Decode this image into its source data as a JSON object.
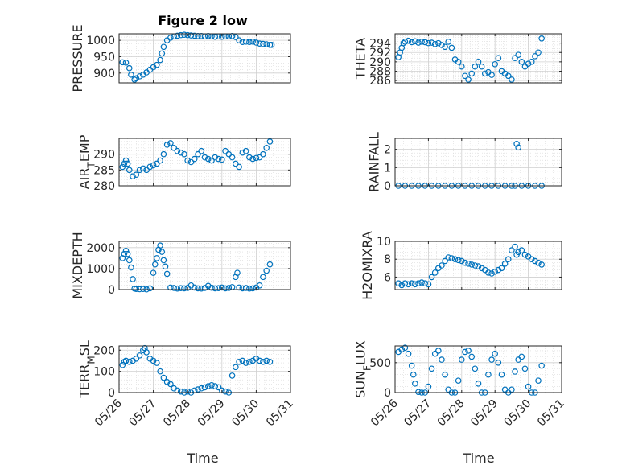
{
  "figure": {
    "title": "Figure 2 low",
    "marker_color": "#0072BD",
    "x_ticks": [
      "05/26",
      "05/27",
      "05/28",
      "05/29",
      "05/30",
      "05/31"
    ],
    "x_label": "Time"
  },
  "chart_data": [
    {
      "type": "scatter",
      "ylabel": "PRESSURE",
      "ylim": [
        870,
        1020
      ],
      "yticks": [
        900,
        950,
        1000
      ],
      "xlim": [
        0,
        5
      ],
      "grid": true,
      "x": [
        0.1,
        0.2,
        0.3,
        0.35,
        0.45,
        0.5,
        0.6,
        0.7,
        0.8,
        0.9,
        1.0,
        1.1,
        1.2,
        1.25,
        1.3,
        1.4,
        1.5,
        1.6,
        1.7,
        1.8,
        1.9,
        2.0,
        2.1,
        2.2,
        2.3,
        2.4,
        2.5,
        2.6,
        2.7,
        2.8,
        2.9,
        3.0,
        3.1,
        3.2,
        3.3,
        3.4,
        3.5,
        3.6,
        3.7,
        3.8,
        3.9,
        4.0,
        4.1,
        4.2,
        4.3,
        4.4,
        4.45
      ],
      "values": [
        933,
        932,
        915,
        895,
        880,
        884,
        890,
        895,
        902,
        910,
        918,
        925,
        940,
        960,
        980,
        1000,
        1008,
        1012,
        1014,
        1016,
        1017,
        1016,
        1015,
        1014,
        1013,
        1013,
        1012,
        1013,
        1012,
        1011,
        1012,
        1011,
        1012,
        1012,
        1013,
        1010,
        1000,
        995,
        996,
        995,
        996,
        993,
        990,
        989,
        988,
        986,
        986
      ]
    },
    {
      "type": "scatter",
      "ylabel": "THETA",
      "ylim": [
        285.5,
        296
      ],
      "yticks": [
        286,
        288,
        290,
        292,
        294
      ],
      "xlim": [
        0,
        5
      ],
      "grid": true,
      "x": [
        0.1,
        0.15,
        0.2,
        0.25,
        0.3,
        0.4,
        0.5,
        0.6,
        0.7,
        0.8,
        0.9,
        1.0,
        1.1,
        1.2,
        1.3,
        1.4,
        1.5,
        1.6,
        1.7,
        1.8,
        1.9,
        2.0,
        2.1,
        2.2,
        2.3,
        2.4,
        2.5,
        2.6,
        2.7,
        2.8,
        2.9,
        3.0,
        3.1,
        3.2,
        3.3,
        3.4,
        3.5,
        3.6,
        3.7,
        3.8,
        3.9,
        4.0,
        4.1,
        4.2,
        4.3,
        4.4
      ],
      "values": [
        291,
        292,
        293,
        294,
        294.3,
        294.5,
        294.2,
        294.4,
        294.1,
        294.3,
        294.2,
        294.0,
        294.1,
        293.8,
        294.0,
        293.6,
        293.2,
        294.3,
        293.0,
        290.5,
        290.0,
        289.0,
        287.0,
        286.2,
        287.5,
        289.0,
        290.0,
        289.0,
        287.5,
        287.8,
        287.2,
        289.5,
        290.8,
        288.0,
        287.5,
        287.0,
        286.2,
        290.8,
        291.5,
        290.0,
        289.0,
        289.6,
        290.0,
        291.2,
        292.0,
        295.0
      ]
    },
    {
      "type": "scatter",
      "ylabel": "AIR_TEMP",
      "ylim": [
        280,
        295
      ],
      "yticks": [
        280,
        285,
        290
      ],
      "xlim": [
        0,
        5
      ],
      "grid": true,
      "x": [
        0.1,
        0.15,
        0.2,
        0.25,
        0.3,
        0.4,
        0.5,
        0.6,
        0.7,
        0.8,
        0.9,
        1.0,
        1.1,
        1.2,
        1.3,
        1.4,
        1.5,
        1.6,
        1.7,
        1.8,
        1.9,
        2.0,
        2.1,
        2.2,
        2.3,
        2.4,
        2.5,
        2.6,
        2.7,
        2.8,
        2.9,
        3.0,
        3.1,
        3.2,
        3.3,
        3.4,
        3.5,
        3.6,
        3.7,
        3.8,
        3.9,
        4.0,
        4.1,
        4.2,
        4.3,
        4.4
      ],
      "values": [
        286,
        287,
        288,
        287,
        285,
        283,
        283.5,
        285,
        285.5,
        285,
        286,
        286.5,
        287,
        288,
        290,
        293,
        293.5,
        292,
        291,
        290.5,
        290,
        288,
        287.5,
        288.5,
        290,
        291,
        289,
        288.5,
        288,
        289,
        288.5,
        288.3,
        291,
        290,
        289,
        287,
        286,
        290.5,
        291,
        289,
        288.5,
        288.8,
        289,
        290,
        292,
        294
      ]
    },
    {
      "type": "scatter",
      "ylabel": "RAINFALL",
      "ylim": [
        0,
        2.6
      ],
      "yticks": [
        0,
        1,
        2
      ],
      "xlim": [
        0,
        5
      ],
      "grid": true,
      "x": [
        0.1,
        0.3,
        0.5,
        0.7,
        0.9,
        1.1,
        1.3,
        1.5,
        1.7,
        1.9,
        2.1,
        2.3,
        2.5,
        2.7,
        2.9,
        3.1,
        3.3,
        3.5,
        3.6,
        3.65,
        3.7,
        3.8,
        4.0,
        4.2,
        4.4
      ],
      "values": [
        0,
        0,
        0,
        0,
        0,
        0,
        0,
        0,
        0,
        0,
        0,
        0,
        0,
        0,
        0,
        0,
        0,
        0,
        0,
        2.3,
        2.1,
        0,
        0,
        0,
        0
      ]
    },
    {
      "type": "scatter",
      "ylabel": "MIXDEPTH",
      "ylim": [
        0,
        2300
      ],
      "yticks": [
        0,
        1000,
        2000
      ],
      "xlim": [
        0,
        5
      ],
      "grid": true,
      "x": [
        0.1,
        0.15,
        0.2,
        0.25,
        0.3,
        0.35,
        0.4,
        0.45,
        0.5,
        0.6,
        0.7,
        0.8,
        0.9,
        1.0,
        1.05,
        1.1,
        1.15,
        1.2,
        1.25,
        1.3,
        1.35,
        1.4,
        1.5,
        1.6,
        1.7,
        1.8,
        1.9,
        2.0,
        2.1,
        2.2,
        2.3,
        2.4,
        2.5,
        2.6,
        2.7,
        2.8,
        2.9,
        3.0,
        3.1,
        3.2,
        3.3,
        3.4,
        3.45,
        3.5,
        3.6,
        3.7,
        3.8,
        3.9,
        4.0,
        4.1,
        4.2,
        4.3,
        4.4
      ],
      "values": [
        1500,
        1700,
        1850,
        1700,
        1400,
        1050,
        500,
        50,
        30,
        20,
        30,
        10,
        60,
        800,
        1200,
        1500,
        1900,
        2100,
        1800,
        1400,
        1100,
        750,
        100,
        80,
        50,
        70,
        60,
        80,
        200,
        100,
        60,
        50,
        80,
        180,
        90,
        60,
        70,
        100,
        60,
        80,
        120,
        600,
        800,
        100,
        60,
        80,
        50,
        60,
        100,
        200,
        600,
        900,
        1200
      ]
    },
    {
      "type": "scatter",
      "ylabel": "H2OMIXRA",
      "ylim": [
        4.6,
        10
      ],
      "yticks": [
        6,
        8,
        10
      ],
      "xlim": [
        0,
        5
      ],
      "grid": true,
      "x": [
        0.1,
        0.2,
        0.3,
        0.4,
        0.5,
        0.6,
        0.7,
        0.8,
        0.9,
        1.0,
        1.1,
        1.2,
        1.3,
        1.4,
        1.5,
        1.6,
        1.7,
        1.8,
        1.9,
        2.0,
        2.1,
        2.2,
        2.3,
        2.4,
        2.5,
        2.6,
        2.7,
        2.8,
        2.9,
        3.0,
        3.1,
        3.2,
        3.3,
        3.4,
        3.5,
        3.6,
        3.65,
        3.7,
        3.8,
        3.9,
        4.0,
        4.1,
        4.2,
        4.3,
        4.4
      ],
      "values": [
        5.3,
        5.1,
        5.3,
        5.2,
        5.3,
        5.2,
        5.3,
        5.4,
        5.3,
        5.2,
        6.0,
        6.5,
        7.0,
        7.3,
        7.8,
        8.2,
        8.1,
        8.0,
        7.9,
        7.8,
        7.6,
        7.5,
        7.4,
        7.3,
        7.2,
        7.0,
        6.8,
        6.5,
        6.4,
        6.6,
        6.8,
        7.0,
        7.5,
        8.0,
        9.0,
        9.4,
        8.5,
        8.8,
        9.0,
        8.5,
        8.3,
        8.0,
        7.8,
        7.6,
        7.4
      ]
    },
    {
      "type": "scatter",
      "ylabel": "TERR_MSL",
      "ylim": [
        0,
        220
      ],
      "yticks": [
        0,
        100,
        200
      ],
      "xlim": [
        0,
        5
      ],
      "grid": true,
      "x": [
        0.1,
        0.15,
        0.2,
        0.3,
        0.4,
        0.5,
        0.6,
        0.7,
        0.75,
        0.8,
        0.9,
        1.0,
        1.1,
        1.2,
        1.3,
        1.4,
        1.5,
        1.6,
        1.7,
        1.8,
        1.9,
        2.0,
        2.1,
        2.2,
        2.3,
        2.4,
        2.5,
        2.6,
        2.7,
        2.8,
        2.9,
        3.0,
        3.1,
        3.2,
        3.3,
        3.4,
        3.5,
        3.6,
        3.7,
        3.8,
        3.9,
        4.0,
        4.1,
        4.2,
        4.3,
        4.4
      ],
      "values": [
        130,
        145,
        150,
        145,
        150,
        160,
        175,
        200,
        210,
        190,
        160,
        150,
        140,
        100,
        70,
        50,
        40,
        20,
        10,
        5,
        0,
        5,
        0,
        10,
        15,
        20,
        25,
        30,
        35,
        30,
        25,
        10,
        5,
        0,
        80,
        120,
        145,
        150,
        140,
        145,
        150,
        160,
        150,
        145,
        150,
        145
      ]
    },
    {
      "type": "scatter",
      "ylabel": "SUN_FLUX",
      "ylim": [
        0,
        780
      ],
      "yticks": [
        0,
        500
      ],
      "xlim": [
        0,
        5
      ],
      "grid": true,
      "x": [
        0.1,
        0.2,
        0.3,
        0.4,
        0.5,
        0.55,
        0.6,
        0.7,
        0.8,
        0.9,
        1.0,
        1.1,
        1.2,
        1.3,
        1.4,
        1.5,
        1.6,
        1.7,
        1.8,
        1.9,
        2.0,
        2.1,
        2.2,
        2.3,
        2.4,
        2.5,
        2.6,
        2.7,
        2.8,
        2.9,
        3.0,
        3.1,
        3.2,
        3.3,
        3.4,
        3.5,
        3.6,
        3.7,
        3.8,
        3.9,
        4.0,
        4.1,
        4.2,
        4.3,
        4.4
      ],
      "values": [
        680,
        720,
        750,
        650,
        450,
        300,
        150,
        10,
        0,
        0,
        100,
        400,
        650,
        700,
        550,
        300,
        50,
        0,
        0,
        200,
        550,
        680,
        700,
        600,
        400,
        150,
        0,
        0,
        300,
        550,
        650,
        500,
        300,
        50,
        0,
        50,
        350,
        550,
        600,
        400,
        100,
        0,
        0,
        200,
        450
      ]
    }
  ]
}
